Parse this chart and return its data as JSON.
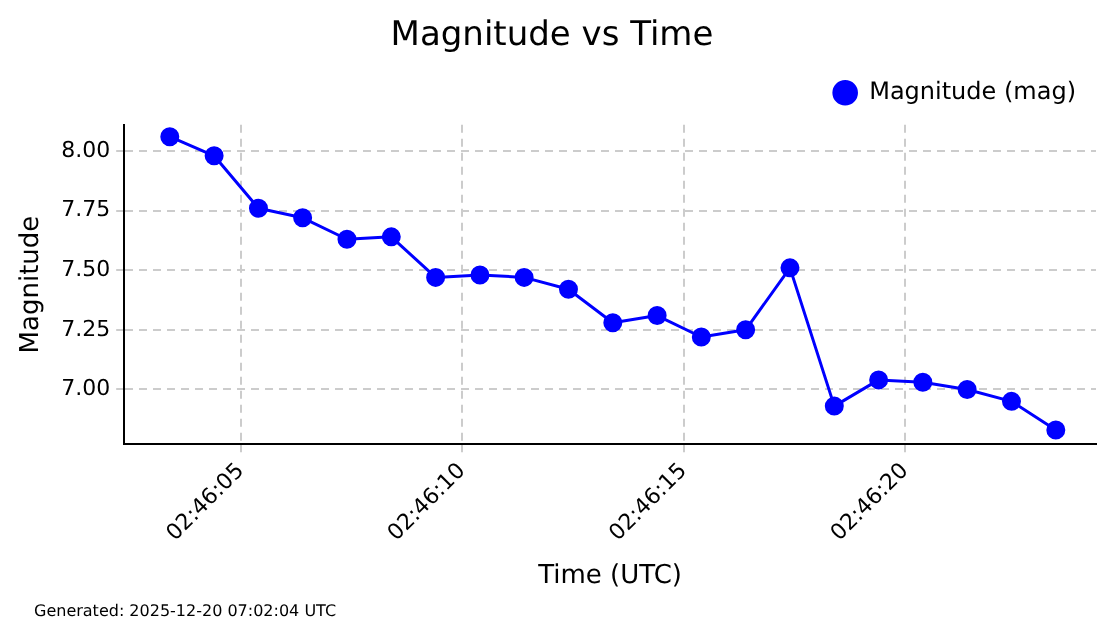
{
  "chart_data": {
    "type": "line",
    "title": "Magnitude vs Time",
    "xlabel": "Time (UTC)",
    "ylabel": "Magnitude",
    "x": [
      2.767611,
      2.767889,
      2.768167,
      2.768444,
      2.768722,
      2.769,
      2.769278,
      2.769556,
      2.769833,
      2.770111,
      2.770389,
      2.770667,
      2.770944,
      2.771222,
      2.7715,
      2.771778,
      2.772056,
      2.772333,
      2.772611,
      2.772889,
      2.773167
    ],
    "series": [
      {
        "name": "Magnitude (mag)",
        "color": "#0000ff",
        "values": [
          8.06,
          7.98,
          7.76,
          7.72,
          7.63,
          7.64,
          7.47,
          7.48,
          7.47,
          7.42,
          7.28,
          7.31,
          7.22,
          7.25,
          7.51,
          6.93,
          7.04,
          7.03,
          7.0,
          6.95,
          6.83
        ]
      }
    ],
    "xlim": [
      2.767325,
      2.773419
    ],
    "xticks": [
      {
        "value": 2.768056,
        "label": "02:46:05"
      },
      {
        "value": 2.769444,
        "label": "02:46:10"
      },
      {
        "value": 2.770833,
        "label": "02:46:15"
      },
      {
        "value": 2.772222,
        "label": "02:46:20"
      }
    ],
    "ylim": [
      6.77,
      8.11
    ],
    "yticks": [
      {
        "value": 7,
        "label": "7.00"
      },
      {
        "value": 7.25,
        "label": "7.25"
      },
      {
        "value": 7.5,
        "label": "7.50"
      },
      {
        "value": 7.75,
        "label": "7.75"
      },
      {
        "value": 8,
        "label": "8.00"
      }
    ],
    "grid": true,
    "legend": "top right",
    "marker": "circle",
    "line_style": "solid",
    "annotations": [
      "Generated: 2025-12-20 07:02:04 UTC"
    ]
  }
}
